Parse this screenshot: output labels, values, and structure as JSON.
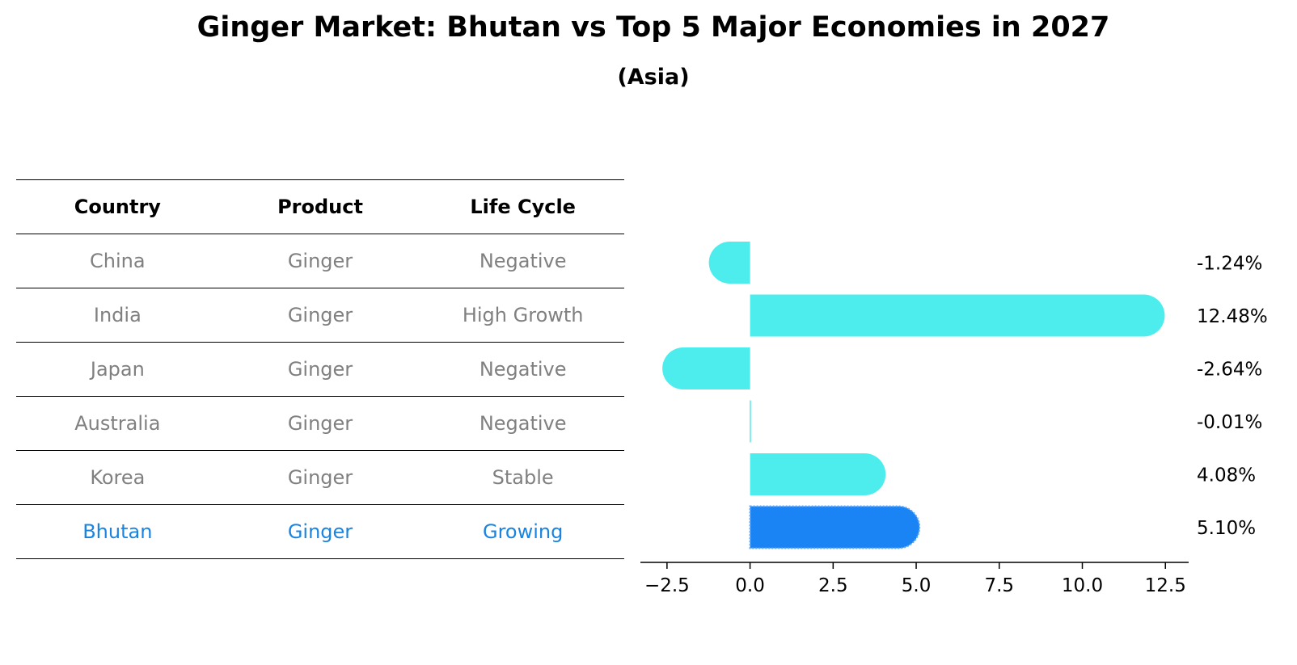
{
  "title": "Ginger Market: Bhutan vs Top 5 Major Economies in 2027",
  "subtitle": "(Asia)",
  "table": {
    "headers": [
      "Country",
      "Product",
      "Life Cycle"
    ],
    "rows": [
      [
        "China",
        "Ginger",
        "Negative"
      ],
      [
        "India",
        "Ginger",
        "High Growth"
      ],
      [
        "Japan",
        "Ginger",
        "Negative"
      ],
      [
        "Australia",
        "Ginger",
        "Negative"
      ],
      [
        "Korea",
        "Ginger",
        "Stable"
      ],
      [
        "Bhutan",
        "Ginger",
        "Growing"
      ]
    ],
    "highlight_row": 5
  },
  "colors": {
    "bar": "#4deded",
    "highlight_bar": "#1a84f5",
    "highlight_text": "#1a84e0",
    "muted_text": "#808080"
  },
  "chart_data": {
    "type": "bar",
    "orientation": "horizontal",
    "categories": [
      "China",
      "India",
      "Japan",
      "Australia",
      "Korea",
      "Bhutan"
    ],
    "values": [
      -1.24,
      12.48,
      -2.64,
      -0.01,
      4.08,
      5.1
    ],
    "value_labels": [
      "-1.24%",
      "12.48%",
      "-2.64%",
      "-0.01%",
      "4.08%",
      "5.10%"
    ],
    "xlim": [
      -3.3,
      13.2
    ],
    "xticks": [
      -2.5,
      0.0,
      2.5,
      5.0,
      7.5,
      10.0,
      12.5
    ],
    "xtick_labels": [
      "−2.5",
      "0.0",
      "2.5",
      "5.0",
      "7.5",
      "10.0",
      "12.5"
    ],
    "highlight_index": 5,
    "grid": false
  }
}
